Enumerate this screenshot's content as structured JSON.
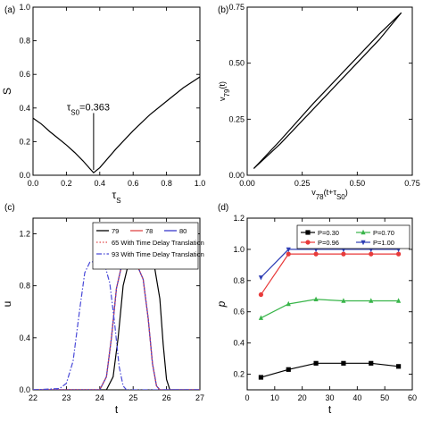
{
  "chart_data": [
    {
      "panel": "(a)",
      "type": "line",
      "xlabel": "τ",
      "xlabel_sub": "S",
      "ylabel": "S",
      "xlim": [
        0.0,
        1.0
      ],
      "ylim": [
        0.0,
        1.0
      ],
      "xticks": [
        "0.0",
        "0.2",
        "0.4",
        "0.6",
        "0.8",
        "1.0"
      ],
      "yticks": [
        "0.0",
        "0.2",
        "0.4",
        "0.6",
        "0.8",
        "1.0"
      ],
      "annotation": {
        "label_main": "τ",
        "label_sub": "S0",
        "label_value": "=0.363",
        "x": 0.363
      },
      "series": [
        {
          "color": "#000000",
          "points": [
            [
              0.0,
              0.34
            ],
            [
              0.05,
              0.305
            ],
            [
              0.1,
              0.26
            ],
            [
              0.15,
              0.22
            ],
            [
              0.2,
              0.18
            ],
            [
              0.25,
              0.135
            ],
            [
              0.3,
              0.085
            ],
            [
              0.34,
              0.04
            ],
            [
              0.363,
              0.015
            ],
            [
              0.4,
              0.045
            ],
            [
              0.5,
              0.16
            ],
            [
              0.6,
              0.265
            ],
            [
              0.7,
              0.36
            ],
            [
              0.8,
              0.44
            ],
            [
              0.9,
              0.52
            ],
            [
              1.0,
              0.585
            ]
          ]
        }
      ]
    },
    {
      "panel": "(b)",
      "type": "line",
      "xlabel": "v",
      "xlabel_sub": "78",
      "xlabel_tail": "(t+τ",
      "xlabel_tail_sub": "S0",
      "xlabel_end": ")",
      "ylabel": "v",
      "ylabel_sub": "79",
      "ylabel_tail": "(t)",
      "xlim": [
        0.0,
        0.75
      ],
      "ylim": [
        0.0,
        0.75
      ],
      "xticks": [
        "0.00",
        "0.25",
        "0.50",
        "0.75"
      ],
      "yticks": [
        "0.00",
        "0.25",
        "0.50",
        "0.75"
      ],
      "series": [
        {
          "color": "#000000",
          "points": [
            [
              0.03,
              0.03
            ],
            [
              0.15,
              0.155
            ],
            [
              0.3,
              0.32
            ],
            [
              0.45,
              0.475
            ],
            [
              0.6,
              0.63
            ],
            [
              0.7,
              0.725
            ]
          ]
        },
        {
          "color": "#000000",
          "points": [
            [
              0.7,
              0.725
            ],
            [
              0.6,
              0.605
            ],
            [
              0.45,
              0.45
            ],
            [
              0.3,
              0.295
            ],
            [
              0.15,
              0.14
            ],
            [
              0.03,
              0.03
            ]
          ]
        }
      ]
    },
    {
      "panel": "(c)",
      "type": "line",
      "xlabel": "t",
      "ylabel": "u",
      "xlim": [
        22,
        27
      ],
      "ylim": [
        0.0,
        1.32
      ],
      "xticks": [
        "22",
        "23",
        "24",
        "25",
        "26",
        "27"
      ],
      "yticks": [
        "0.0",
        "0.4",
        "0.8",
        "1.2"
      ],
      "legend": "top-right",
      "series": [
        {
          "name": "79",
          "color": "#000000",
          "dash": "",
          "points": [
            [
              22.0,
              0.0
            ],
            [
              24.2,
              0.0
            ],
            [
              24.4,
              0.1
            ],
            [
              24.55,
              0.4
            ],
            [
              24.7,
              0.8
            ],
            [
              24.85,
              0.96
            ],
            [
              25.0,
              0.99
            ],
            [
              25.4,
              0.99
            ],
            [
              25.65,
              0.93
            ],
            [
              25.8,
              0.7
            ],
            [
              25.9,
              0.35
            ],
            [
              26.0,
              0.08
            ],
            [
              26.1,
              0.0
            ],
            [
              27.0,
              0.0
            ]
          ]
        },
        {
          "name": "78",
          "color": "#e04848",
          "dash": "",
          "points": [
            [
              22.0,
              0.0
            ],
            [
              24.0,
              0.0
            ],
            [
              24.2,
              0.1
            ],
            [
              24.35,
              0.4
            ],
            [
              24.5,
              0.78
            ],
            [
              24.65,
              0.95
            ],
            [
              24.85,
              0.99
            ],
            [
              25.1,
              0.97
            ],
            [
              25.3,
              0.85
            ],
            [
              25.45,
              0.55
            ],
            [
              25.58,
              0.2
            ],
            [
              25.7,
              0.03
            ],
            [
              25.8,
              0.0
            ],
            [
              27.0,
              0.0
            ]
          ]
        },
        {
          "name": "80",
          "color": "#3a3acc",
          "dash": "",
          "points": [
            [
              22.0,
              0.0
            ],
            [
              24.0,
              0.0
            ],
            [
              24.2,
              0.1
            ],
            [
              24.35,
              0.4
            ],
            [
              24.5,
              0.78
            ],
            [
              24.65,
              0.95
            ],
            [
              24.85,
              0.99
            ],
            [
              25.1,
              0.97
            ],
            [
              25.3,
              0.85
            ],
            [
              25.45,
              0.55
            ],
            [
              25.58,
              0.2
            ],
            [
              25.7,
              0.03
            ],
            [
              25.8,
              0.0
            ],
            [
              27.0,
              0.0
            ]
          ]
        },
        {
          "name": "65 With Time Delay Translation",
          "color": "#e04848",
          "dash": "1.5,2",
          "points": [
            [
              22.0,
              0.0
            ],
            [
              24.0,
              0.0
            ],
            [
              24.2,
              0.1
            ],
            [
              24.35,
              0.4
            ],
            [
              24.5,
              0.78
            ],
            [
              24.65,
              0.95
            ],
            [
              24.85,
              0.99
            ],
            [
              25.1,
              0.97
            ],
            [
              25.3,
              0.85
            ],
            [
              25.45,
              0.55
            ],
            [
              25.58,
              0.2
            ],
            [
              25.7,
              0.03
            ],
            [
              25.8,
              0.0
            ],
            [
              27.0,
              0.0
            ]
          ]
        },
        {
          "name": "93 With Time Delay Translation",
          "color": "#4a4ad8",
          "dash": "6,2,1.5,2",
          "points": [
            [
              22.0,
              0.0
            ],
            [
              22.8,
              0.01
            ],
            [
              23.0,
              0.05
            ],
            [
              23.2,
              0.22
            ],
            [
              23.4,
              0.62
            ],
            [
              23.55,
              0.9
            ],
            [
              23.7,
              0.98
            ],
            [
              23.9,
              0.99
            ],
            [
              24.15,
              0.96
            ],
            [
              24.3,
              0.82
            ],
            [
              24.45,
              0.5
            ],
            [
              24.58,
              0.18
            ],
            [
              24.7,
              0.03
            ],
            [
              24.8,
              0.0
            ],
            [
              27.0,
              0.0
            ]
          ]
        }
      ]
    },
    {
      "panel": "(d)",
      "type": "line",
      "xlabel": "t",
      "ylabel": "p",
      "xlim": [
        0,
        60
      ],
      "ylim": [
        0.1,
        1.2
      ],
      "xticks": [
        "0",
        "10",
        "20",
        "30",
        "40",
        "50",
        "60"
      ],
      "yticks": [
        "0.2",
        "0.4",
        "0.6",
        "0.8",
        "1.0",
        "1.2"
      ],
      "legend": "top-right",
      "series": [
        {
          "name": "P=0.30",
          "color": "#000000",
          "marker": "square",
          "points": [
            [
              5,
              0.18
            ],
            [
              15,
              0.23
            ],
            [
              25,
              0.27
            ],
            [
              35,
              0.27
            ],
            [
              45,
              0.27
            ],
            [
              55,
              0.25
            ]
          ]
        },
        {
          "name": "P=0.70",
          "color": "#39b54a",
          "marker": "triangle-up",
          "points": [
            [
              5,
              0.56
            ],
            [
              15,
              0.65
            ],
            [
              25,
              0.68
            ],
            [
              35,
              0.67
            ],
            [
              45,
              0.67
            ],
            [
              55,
              0.67
            ]
          ]
        },
        {
          "name": "P=0.96",
          "color": "#e83a3a",
          "marker": "circle",
          "points": [
            [
              5,
              0.71
            ],
            [
              15,
              0.97
            ],
            [
              25,
              0.97
            ],
            [
              35,
              0.97
            ],
            [
              45,
              0.97
            ],
            [
              55,
              0.97
            ]
          ]
        },
        {
          "name": "P=1.00",
          "color": "#2f3fb5",
          "marker": "triangle-down",
          "points": [
            [
              5,
              0.82
            ],
            [
              15,
              1.0
            ],
            [
              25,
              1.0
            ],
            [
              35,
              1.0
            ],
            [
              45,
              1.0
            ],
            [
              55,
              1.0
            ]
          ]
        }
      ]
    }
  ]
}
